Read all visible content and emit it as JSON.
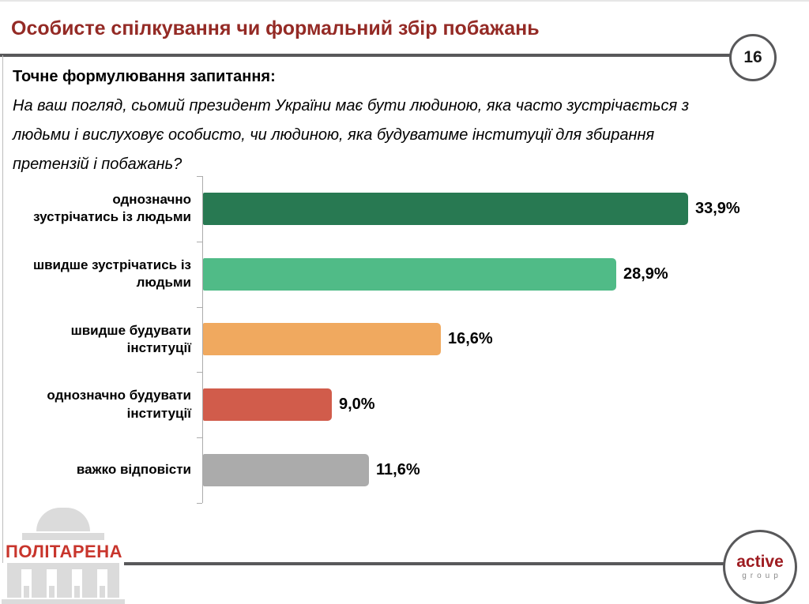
{
  "slide": {
    "title": "Особисте спілкування чи формальний збір побажань",
    "page_number": "16",
    "question_header": "Точне формулювання запитання:",
    "question_lines": [
      "На ваш погляд, сьомий президент України має бути людиною, яка часто зустрічається з",
      "людьми і вислуховує особисто, чи людиною, яка будуватиме інституції для збирання",
      "претензій і побажань?"
    ]
  },
  "chart_data": {
    "type": "bar",
    "orientation": "horizontal",
    "title": "",
    "xlabel": "",
    "ylabel": "",
    "xlim": [
      0,
      37
    ],
    "grid": false,
    "legend": false,
    "categories": [
      "однозначно зустрічатись із людьми",
      "швидше зустрічатись із людьми",
      "швидше будувати інституції",
      "однозначно будувати інституції",
      "важко відповісти"
    ],
    "label_lines": [
      [
        "однозначно",
        "зустрічатись із людьми"
      ],
      [
        "швидше зустрічатись із",
        "людьми"
      ],
      [
        "швидше будувати",
        "інституції"
      ],
      [
        "однозначно будувати",
        "інституції"
      ],
      [
        "важко відповісти"
      ]
    ],
    "values": [
      33.9,
      28.9,
      16.6,
      9.0,
      11.6
    ],
    "value_labels": [
      "33,9%",
      "28,9%",
      "16,6%",
      "9,0%",
      "11,6%"
    ],
    "bar_colors": [
      "#287952",
      "#50BB87",
      "#F0A95F",
      "#D15C4B",
      "#ABABAB"
    ]
  },
  "footer": {
    "left_logo_text": "ПОЛІТАРЕНА",
    "right_logo_line1": "active",
    "right_logo_line2": "group"
  },
  "colors": {
    "title_red": "#942A25",
    "rule_gray": "#58585A",
    "axis_gray": "#ACACAC",
    "politarena_red": "#C8352C",
    "active_red": "#9E1C21",
    "group_gray": "#8A8A8A",
    "logo_gray": "#DBDBDB"
  }
}
